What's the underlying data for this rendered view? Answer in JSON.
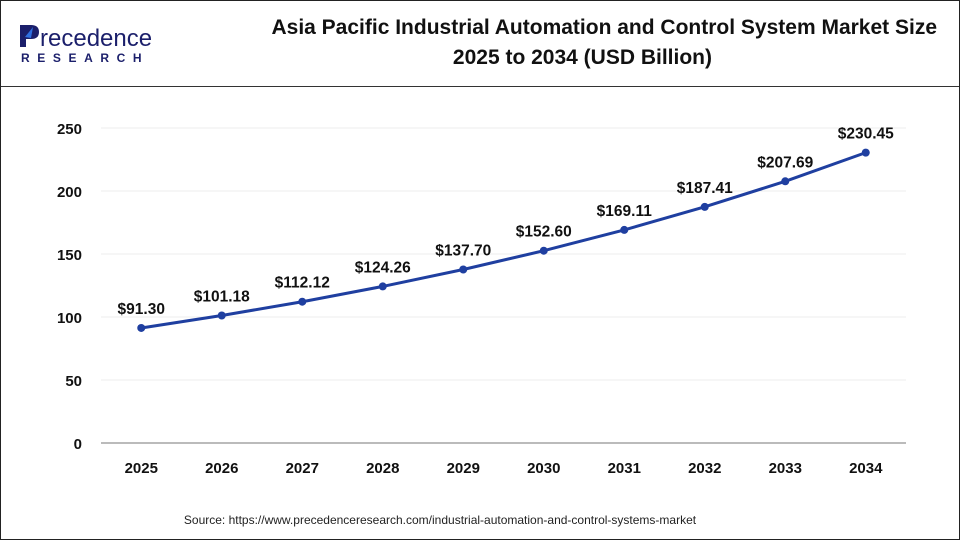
{
  "brand": {
    "name_line1": "Precedence",
    "name_line2": "RESEARCH",
    "primary_color": "#1b1f6b",
    "accent_color": "#2f6fe0"
  },
  "title_line1": "Asia Pacific Industrial Automation and Control System Market Size",
  "title_line2": "2025 to 2034 (USD Billion)",
  "source": "Source: https://www.precedenceresearch.com/industrial-automation-and-control-systems-market",
  "chart_data": {
    "type": "line",
    "title": "Asia Pacific Industrial Automation and Control System Market Size 2025 to 2034 (USD Billion)",
    "categories": [
      "2025",
      "2026",
      "2027",
      "2028",
      "2029",
      "2030",
      "2031",
      "2032",
      "2033",
      "2034"
    ],
    "series": [
      {
        "values": [
          91.3,
          101.18,
          112.12,
          124.26,
          137.7,
          152.6,
          169.11,
          187.41,
          207.69,
          230.45
        ],
        "color": "#1f3fa0"
      }
    ],
    "data_labels": [
      "$91.30",
      "$101.18",
      "$112.12",
      "$124.26",
      "$137.70",
      "$152.60",
      "$169.11",
      "$187.41",
      "$207.69",
      "$230.45"
    ],
    "yticks": [
      "0",
      "50",
      "100",
      "150",
      "200",
      "250"
    ],
    "ylim": [
      0,
      250
    ],
    "grid": true,
    "xlabel": "",
    "ylabel": ""
  }
}
